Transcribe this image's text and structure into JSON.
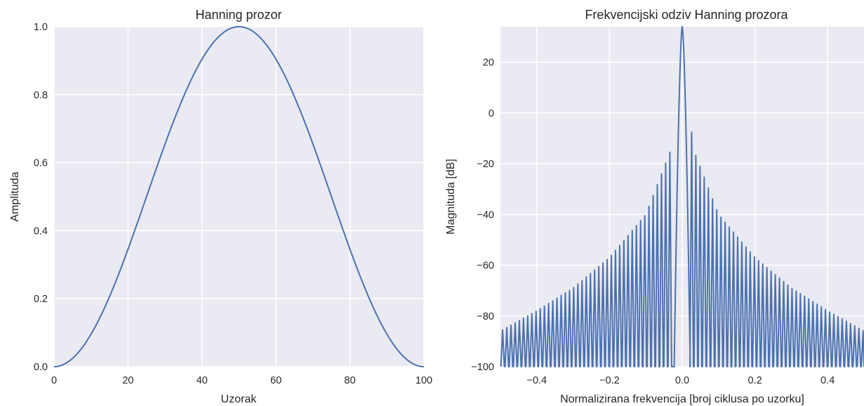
{
  "charts": [
    {
      "type": "line",
      "title": "Hanning prozor",
      "xlabel": "Uzorak",
      "ylabel": "Amplituda",
      "xlim": [
        0,
        100
      ],
      "ylim": [
        0.0,
        1.0
      ],
      "xticks": [
        "0",
        "20",
        "40",
        "60",
        "80",
        "100"
      ],
      "yticks": [
        "0.0",
        "0.2",
        "0.4",
        "0.6",
        "0.8",
        "1.0"
      ],
      "grid": true,
      "line_color": "#4c72b0",
      "background": "#eaeaf2"
    },
    {
      "type": "line",
      "title": "Frekvencijski odziv Hanning prozora",
      "xlabel": "Normalizirana frekvencija [broj ciklusa po uzorku]",
      "ylabel": "Magnituda [dB]",
      "xlim": [
        -0.5,
        0.5
      ],
      "ylim": [
        -100,
        34
      ],
      "xticks": [
        "−0.4",
        "−0.2",
        "0.0",
        "0.2",
        "0.4"
      ],
      "yticks": [
        "−100",
        "−80",
        "−60",
        "−40",
        "−20",
        "0",
        "20"
      ],
      "grid": true,
      "line_color": "#4c72b0",
      "background": "#eaeaf2"
    }
  ],
  "chart_data": [
    {
      "type": "line",
      "title": "Hanning prozor",
      "xlabel": "Uzorak",
      "ylabel": "Amplituda",
      "xlim": [
        0,
        100
      ],
      "ylim": [
        0.0,
        1.0
      ],
      "x": [
        0,
        10,
        20,
        30,
        40,
        50,
        60,
        70,
        80,
        90,
        100
      ],
      "y": [
        0.0,
        0.095,
        0.345,
        0.655,
        0.905,
        1.0,
        0.905,
        0.655,
        0.345,
        0.095,
        0.0
      ],
      "grid": true
    },
    {
      "type": "line",
      "title": "Frekvencijski odziv Hanning prozora",
      "xlabel": "Normalizirana frekvencija [broj ciklusa po uzorku]",
      "ylabel": "Magnituda [dB]",
      "xlim": [
        -0.5,
        0.5
      ],
      "ylim": [
        -100,
        34
      ],
      "x": [
        -0.5,
        -0.4,
        -0.3,
        -0.2,
        -0.1,
        -0.03,
        0.0,
        0.03,
        0.1,
        0.2,
        0.3,
        0.4,
        0.5
      ],
      "y_peak_envelope": [
        -86,
        -78,
        -69,
        -57,
        -40,
        -14,
        34,
        -14,
        -40,
        -57,
        -69,
        -78,
        -86
      ],
      "y_floor": -100,
      "main_lobe_peak": 34,
      "first_sidelobe_peak": 3,
      "grid": true
    }
  ]
}
